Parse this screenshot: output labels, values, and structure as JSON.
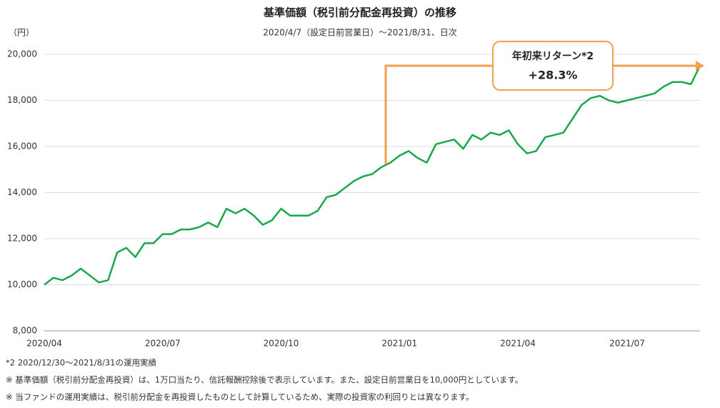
{
  "chart_data": {
    "type": "line",
    "title": "基準価額（税引前分配金再投資）の推移",
    "subtitle": "2020/4/7（設定日前営業日）～2021/8/31、日次",
    "y_unit": "（円）",
    "categories": [
      "2020/04",
      null,
      null,
      null,
      null,
      null,
      null,
      null,
      null,
      null,
      null,
      null,
      null,
      "2020/07",
      null,
      null,
      null,
      null,
      null,
      null,
      null,
      null,
      null,
      null,
      null,
      null,
      "2020/10",
      null,
      null,
      null,
      null,
      null,
      null,
      null,
      null,
      null,
      null,
      null,
      null,
      "2021/01",
      null,
      null,
      null,
      null,
      null,
      null,
      null,
      null,
      null,
      null,
      null,
      null,
      "2021/04",
      null,
      null,
      null,
      null,
      null,
      null,
      null,
      null,
      null,
      null,
      null,
      "2021/07",
      null,
      null,
      null,
      null,
      null,
      null,
      null,
      null
    ],
    "values": [
      10000,
      10300,
      10200,
      10400,
      10700,
      10400,
      10100,
      10200,
      11400,
      11600,
      11200,
      11800,
      11800,
      12200,
      12200,
      12400,
      12400,
      12500,
      12700,
      12500,
      13300,
      13100,
      13300,
      13000,
      12600,
      12800,
      13300,
      13000,
      13000,
      13000,
      13200,
      13800,
      13900,
      14200,
      14500,
      14700,
      14800,
      15100,
      15300,
      15600,
      15800,
      15500,
      15300,
      16100,
      16200,
      16300,
      15900,
      16500,
      16300,
      16600,
      16500,
      16700,
      16100,
      15700,
      15800,
      16400,
      16500,
      16600,
      17200,
      17800,
      18100,
      18200,
      18000,
      17900,
      18000,
      18100,
      18200,
      18300,
      18600,
      18800,
      18800,
      18700,
      19500
    ],
    "color": "#19a84b",
    "ylim": [
      8000,
      20000
    ],
    "yticks": [
      {
        "value": 8000,
        "label": "8,000"
      },
      {
        "value": 10000,
        "label": "10,000"
      },
      {
        "value": 12000,
        "label": "12,000"
      },
      {
        "value": 14000,
        "label": "14,000"
      },
      {
        "value": 16000,
        "label": "16,000"
      },
      {
        "value": 18000,
        "label": "18,000"
      },
      {
        "value": 20000,
        "label": "20,000"
      }
    ],
    "grid": true,
    "annotation": {
      "label": "年初来リターン*2",
      "value_label": "+28.3%"
    },
    "footnotes": [
      "*2 2020/12/30～2021/8/31の運用実績",
      "※ 基準価額（税引前分配金再投資）は、1万口当たり、信託報酬控除後で表示しています。また、設定日前営業日を10,000円としています。",
      "※ 当ファンドの運用実績は、税引前分配金を再投資したものとして計算しているため、実際の投資家の利回りとは異なります。"
    ]
  }
}
